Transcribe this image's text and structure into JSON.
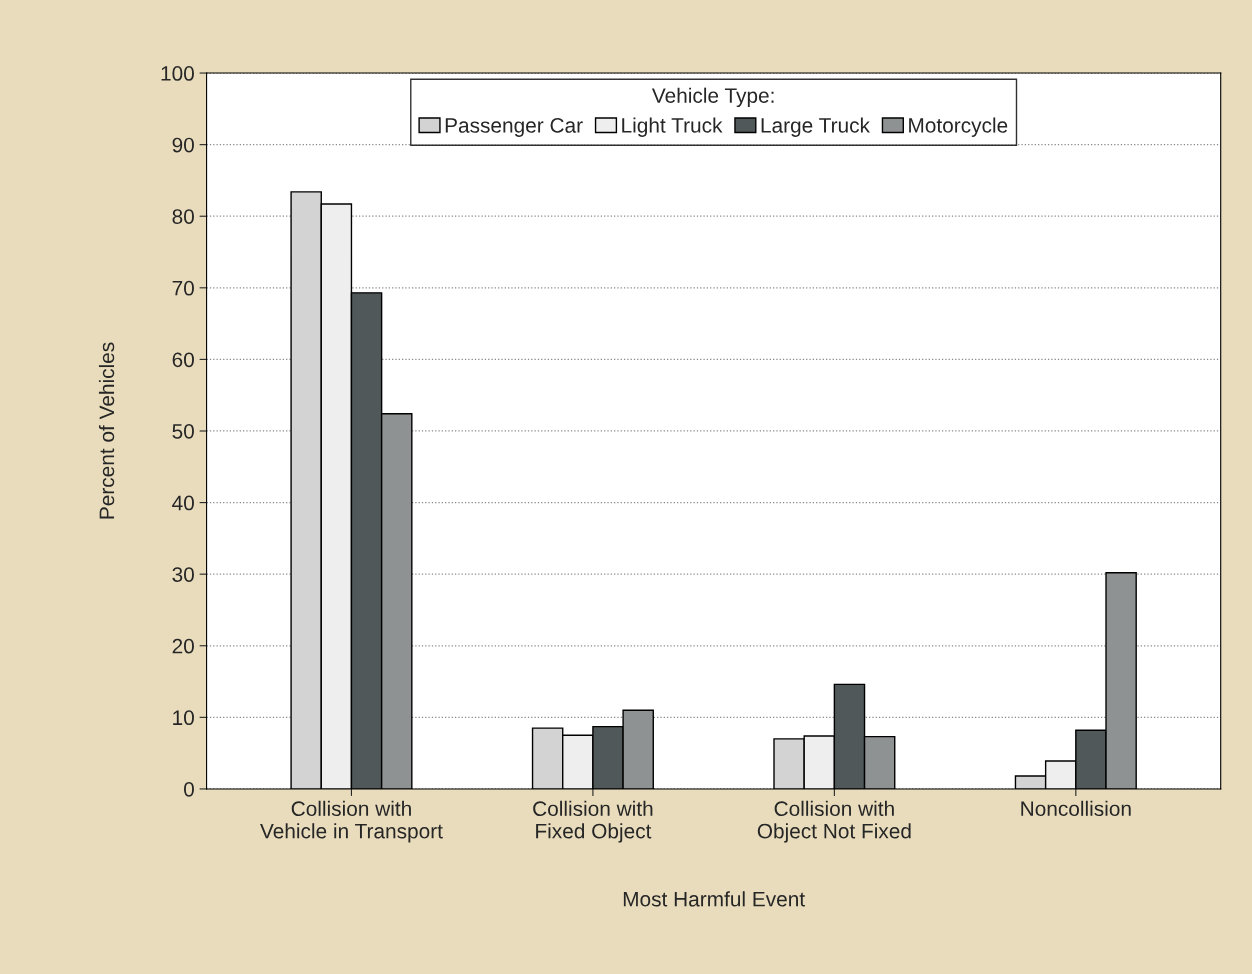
{
  "chart_data": {
    "type": "bar",
    "categories": [
      "Collision with\nVehicle in Transport",
      "Collision with\nFixed Object",
      "Collision with\nObject Not Fixed",
      "Noncollision"
    ],
    "series": [
      {
        "name": "Passenger Car",
        "color": "#d3d3d3",
        "values": [
          83.4,
          8.5,
          7.0,
          1.8
        ]
      },
      {
        "name": "Light Truck",
        "color": "#eeeeee",
        "values": [
          81.7,
          7.5,
          7.4,
          3.9
        ]
      },
      {
        "name": "Large Truck",
        "color": "#505859",
        "values": [
          69.3,
          8.7,
          14.6,
          8.2
        ]
      },
      {
        "name": "Motorcycle",
        "color": "#8f9293",
        "values": [
          52.4,
          11.0,
          7.3,
          30.2
        ]
      }
    ],
    "xlabel": "Most Harmful Event",
    "ylabel": "Percent of Vehicles",
    "legend_title": "Vehicle Type:",
    "ylim": [
      0,
      100
    ],
    "yticks": [
      0,
      10,
      20,
      30,
      40,
      50,
      60,
      70,
      80,
      90,
      100
    ],
    "grid": "y",
    "legend": "top"
  }
}
